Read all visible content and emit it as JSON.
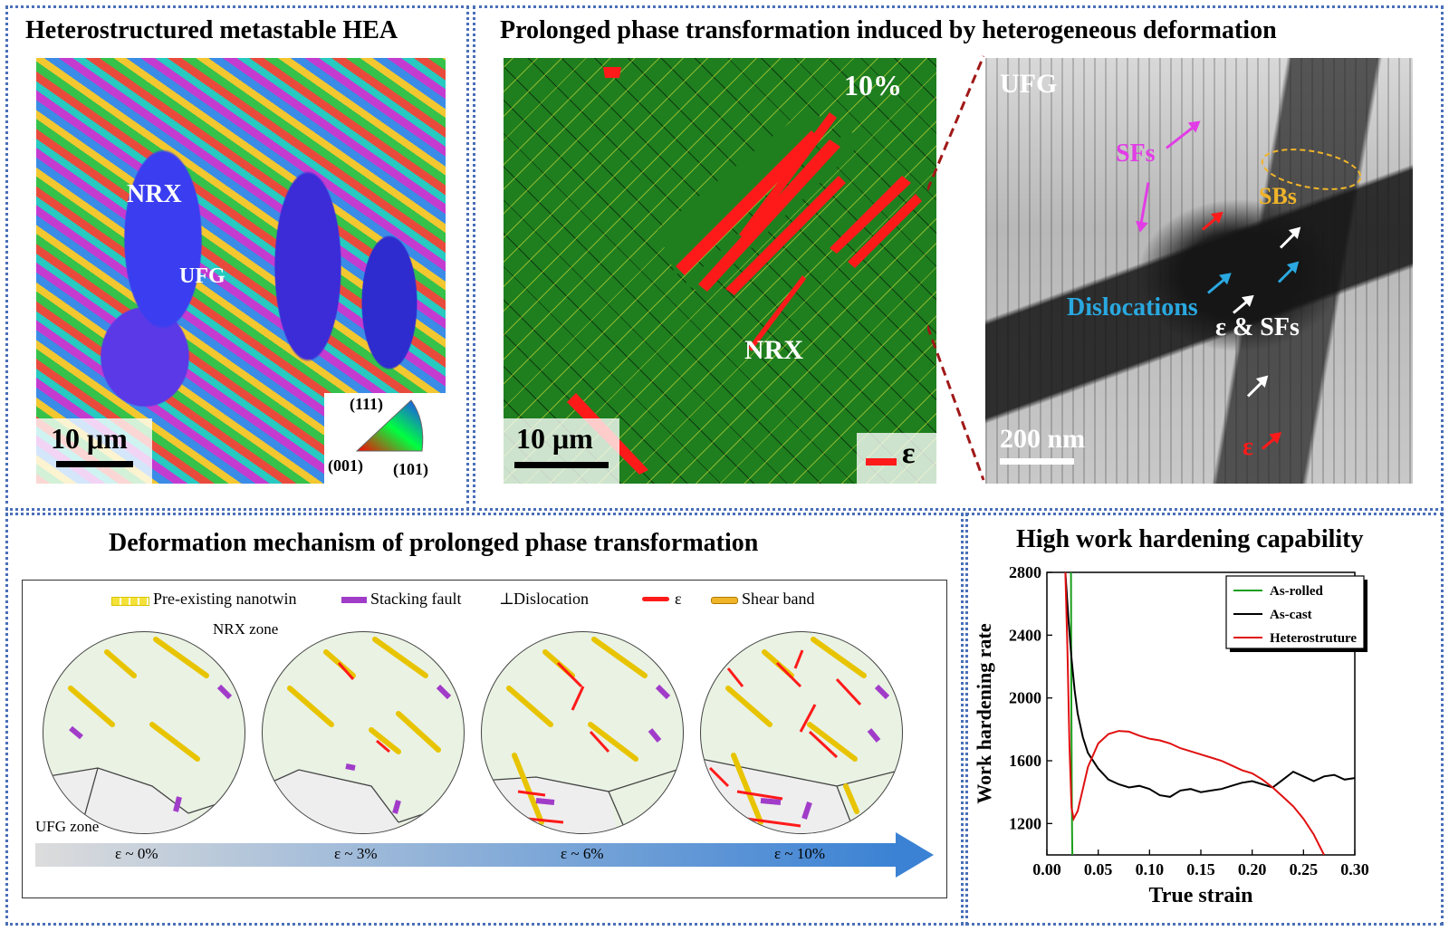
{
  "panels": {
    "hea": {
      "title": "Heterostructured metastable HEA",
      "label_nrx": "NRX",
      "label_ufg": "UFG",
      "scale": "10 μm",
      "ipf": {
        "top": "(111)",
        "left": "(001)",
        "right": "(101)"
      }
    },
    "phase": {
      "title": "Prolonged phase transformation induced by heterogeneous deformation",
      "map": {
        "strain": "10%",
        "label_nrx": "NRX",
        "scale": "10 μm",
        "legend": "ε"
      },
      "tem": {
        "label_ufg": "UFG",
        "sfs": "SFs",
        "sbs": "SBs",
        "dislocations": "Dislocations",
        "eps_sfs": "ε & SFs",
        "eps": "ε",
        "scale": "200 nm"
      }
    },
    "mechanism": {
      "title": "Deformation mechanism of prolonged phase transformation",
      "legend": [
        "Pre-existing nanotwin",
        "Stacking fault",
        "Dislocation",
        "ε",
        "Shear band"
      ],
      "dislocation_symbol": "⊥",
      "nrx_zone": "NRX zone",
      "ufg_zone": "UFG zone",
      "stages": [
        "ε ~ 0%",
        "ε ~ 3%",
        "ε ~ 6%",
        "ε ~ 10%"
      ]
    },
    "hardening": {
      "title": "High work hardening capability"
    }
  },
  "colors": {
    "border": "#4a6fb8",
    "green_map": "#1f7f1f",
    "epsilon_red": "#ff1a1a",
    "sf_magenta": "#e23ce6",
    "sb_orange": "#f0b429",
    "dislocation_blue": "#2aa8e0",
    "twin_yellow": "#f4e23a",
    "sf_purple": "#a13cc9"
  },
  "chart_data": {
    "type": "line",
    "xlabel": "True strain",
    "ylabel": "Work hardening rate",
    "xlim": [
      0.0,
      0.3
    ],
    "ylim": [
      1000,
      2800
    ],
    "xticks": [
      "0.00",
      "0.05",
      "0.10",
      "0.15",
      "0.20",
      "0.25",
      "0.30"
    ],
    "yticks": [
      "1200",
      "1600",
      "2000",
      "2400",
      "2800"
    ],
    "legend_position": "top-right",
    "series": [
      {
        "name": "As-rolled",
        "color": "#1a9e1a",
        "x": [
          0.0235,
          0.0238,
          0.0242,
          0.0245,
          0.0248
        ],
        "y": [
          2800,
          2000,
          1500,
          1150,
          1000
        ]
      },
      {
        "name": "As-cast",
        "color": "#000000",
        "x": [
          0.018,
          0.021,
          0.024,
          0.027,
          0.03,
          0.035,
          0.04,
          0.05,
          0.06,
          0.07,
          0.08,
          0.09,
          0.1,
          0.11,
          0.12,
          0.13,
          0.14,
          0.15,
          0.16,
          0.17,
          0.18,
          0.19,
          0.2,
          0.21,
          0.22,
          0.23,
          0.24,
          0.25,
          0.26,
          0.27,
          0.28,
          0.29,
          0.3
        ],
        "y": [
          2800,
          2500,
          2250,
          2050,
          1900,
          1750,
          1650,
          1550,
          1480,
          1450,
          1430,
          1440,
          1420,
          1380,
          1370,
          1410,
          1420,
          1400,
          1410,
          1420,
          1440,
          1460,
          1470,
          1450,
          1430,
          1480,
          1530,
          1500,
          1470,
          1500,
          1510,
          1480,
          1490
        ]
      },
      {
        "name": "Heterostruture",
        "color": "#e01010",
        "x": [
          0.018,
          0.02,
          0.022,
          0.024,
          0.026,
          0.03,
          0.035,
          0.04,
          0.05,
          0.06,
          0.07,
          0.08,
          0.09,
          0.1,
          0.11,
          0.12,
          0.13,
          0.14,
          0.15,
          0.16,
          0.17,
          0.18,
          0.19,
          0.2,
          0.21,
          0.22,
          0.23,
          0.24,
          0.25,
          0.26,
          0.27
        ],
        "y": [
          2800,
          2300,
          1700,
          1300,
          1230,
          1280,
          1420,
          1560,
          1710,
          1770,
          1790,
          1785,
          1760,
          1740,
          1730,
          1710,
          1680,
          1660,
          1640,
          1620,
          1600,
          1570,
          1540,
          1520,
          1480,
          1430,
          1370,
          1310,
          1230,
          1130,
          1000
        ]
      }
    ]
  }
}
